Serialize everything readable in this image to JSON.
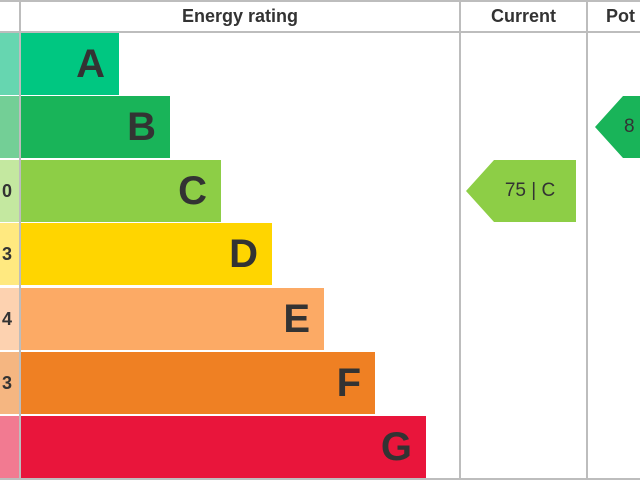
{
  "headers": {
    "energy_rating": "Energy rating",
    "current": "Current",
    "potential": "Pot"
  },
  "bands": [
    {
      "letter": "A",
      "color": "#00c781",
      "score": ""
    },
    {
      "letter": "B",
      "color": "#19b459",
      "score": ""
    },
    {
      "letter": "C",
      "color": "#8dce46",
      "score": "0"
    },
    {
      "letter": "D",
      "color": "#ffd500",
      "score": "3"
    },
    {
      "letter": "E",
      "color": "#fcaa65",
      "score": "4"
    },
    {
      "letter": "F",
      "color": "#ef8023",
      "score": "3"
    },
    {
      "letter": "G",
      "color": "#e9153b",
      "score": ""
    }
  ],
  "current": {
    "label": "75 | C",
    "band": "C",
    "color": "#8dce46"
  },
  "potential": {
    "label": "8",
    "band": "B",
    "color": "#19b459"
  }
}
